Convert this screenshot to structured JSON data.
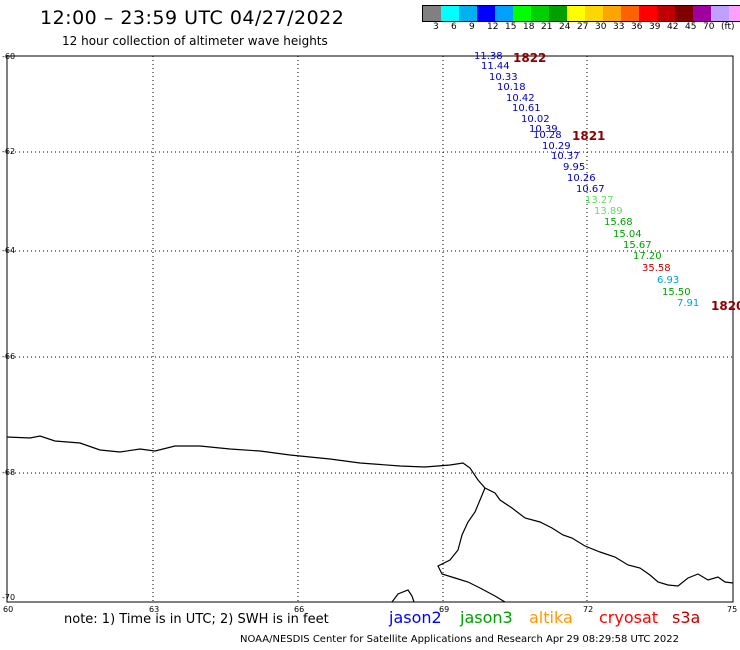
{
  "title": "12:00 – 23:59 UTC 04/27/2022",
  "subtitle": "12 hour collection of altimeter wave heights",
  "legend": {
    "colors": [
      "#808080",
      "#00ffff",
      "#00b0f0",
      "#0000ff",
      "#00a0ff",
      "#00ff00",
      "#00d000",
      "#00a000",
      "#ffff00",
      "#ffd700",
      "#ffa500",
      "#ff6000",
      "#ff0000",
      "#c00000",
      "#800000",
      "#a000a0",
      "#c0a0ff",
      "#ffa0ff",
      "#000000"
    ],
    "labels": [
      "3",
      "6",
      "9",
      "12",
      "15",
      "18",
      "21",
      "24",
      "27",
      "30",
      "33",
      "36",
      "39",
      "42",
      "45",
      "70",
      "(ft)"
    ]
  },
  "lat_labels": [
    "-60",
    "-62",
    "-64",
    "-66",
    "-68",
    "-70"
  ],
  "lon_labels": [
    "60",
    "63",
    "66",
    "69",
    "72",
    "75"
  ],
  "passes": [
    "1822",
    "1821",
    "1820"
  ],
  "wave_heights": [
    {
      "value": "11.38",
      "color": "#0000c0"
    },
    {
      "value": "11.44",
      "color": "#0000c0"
    },
    {
      "value": "10.33",
      "color": "#0000c0"
    },
    {
      "value": "10.18",
      "color": "#0000c0"
    },
    {
      "value": "10.42",
      "color": "#0000c0"
    },
    {
      "value": "10.61",
      "color": "#0000c0"
    },
    {
      "value": "10.02",
      "color": "#0000c0"
    },
    {
      "value": "10.39",
      "color": "#0000c0"
    },
    {
      "value": "10.28",
      "color": "#0000c0"
    },
    {
      "value": "10.29",
      "color": "#0000c0"
    },
    {
      "value": "10.37",
      "color": "#0000c0"
    },
    {
      "value": "9.95",
      "color": "#0000c0"
    },
    {
      "value": "10.26",
      "color": "#0000c0"
    },
    {
      "value": "10.67",
      "color": "#0000c0"
    },
    {
      "value": "13.27",
      "color": "#66dd66"
    },
    {
      "value": "13.89",
      "color": "#66dd66"
    },
    {
      "value": "15.68",
      "color": "#00a000"
    },
    {
      "value": "15.04",
      "color": "#00a000"
    },
    {
      "value": "15.67",
      "color": "#00a000"
    },
    {
      "value": "17.20",
      "color": "#00a000"
    },
    {
      "value": "35.58",
      "color": "#c00000"
    },
    {
      "value": "6.93",
      "color": "#00a0d0"
    },
    {
      "value": "15.50",
      "color": "#00a000"
    },
    {
      "value": "7.91",
      "color": "#00a0d0"
    }
  ],
  "note": "note: 1) Time is in UTC; 2) SWH is in feet",
  "satellites": [
    {
      "name": "jason2",
      "color": "#0000ff"
    },
    {
      "name": "jason3",
      "color": "#00a000"
    },
    {
      "name": "altika",
      "color": "#ff9900"
    },
    {
      "name": "cryosat",
      "color": "#ff0000"
    },
    {
      "name": "s3a",
      "color": "#c00000"
    }
  ],
  "footer": "NOAA/NESDIS Center for Satellite Applications and Research    Apr 29 08:29:58 UTC 2022"
}
